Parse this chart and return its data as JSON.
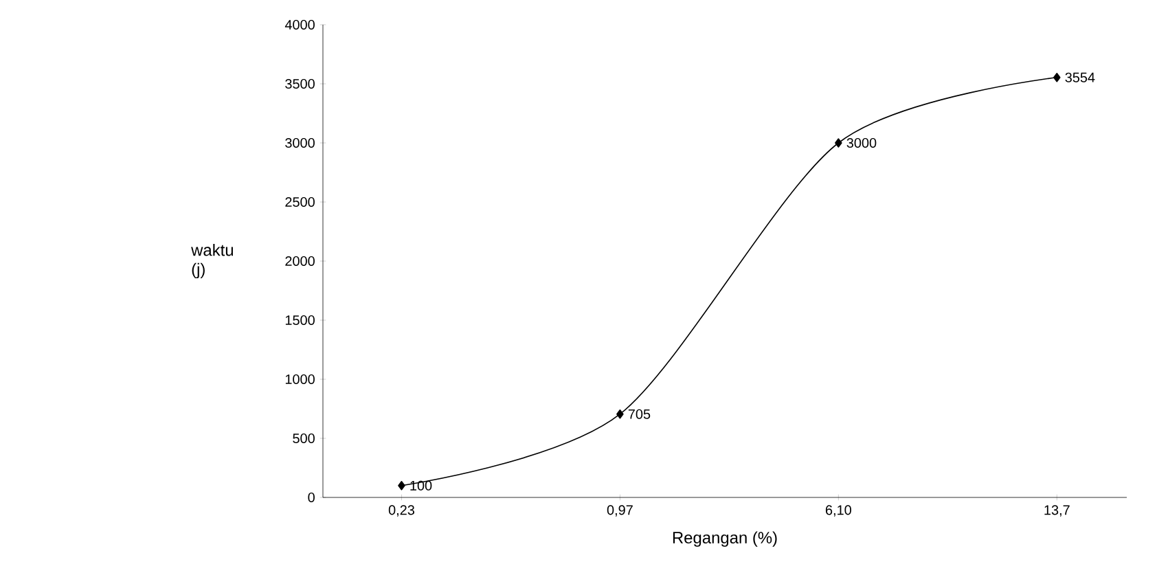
{
  "chart_data": {
    "type": "line",
    "xlabel": "Regangan (%)",
    "ylabel": "waktu (j)",
    "categories": [
      "0,23",
      "0,97",
      "6,10",
      "13,7"
    ],
    "values": [
      100,
      705,
      3000,
      3554
    ],
    "color": "#000000",
    "marker": "diamond",
    "line_style": "solid",
    "data_labels": true,
    "ylim": [
      0,
      4000
    ],
    "yticks": [
      0,
      500,
      1000,
      1500,
      2000,
      2500,
      3000,
      3500,
      4000
    ],
    "grid": false
  }
}
